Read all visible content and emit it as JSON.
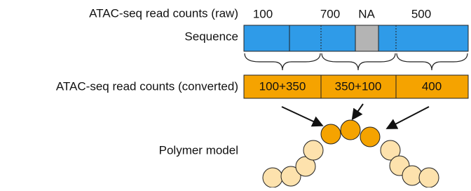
{
  "labels": {
    "raw": "ATAC-seq read counts (raw)",
    "sequence": "Sequence",
    "converted": "ATAC-seq read counts (converted)",
    "polymer": "Polymer model"
  },
  "raw_counts": [
    "100",
    "700",
    "NA",
    "500"
  ],
  "converted_counts": [
    "100+350",
    "350+100",
    "400"
  ]
}
